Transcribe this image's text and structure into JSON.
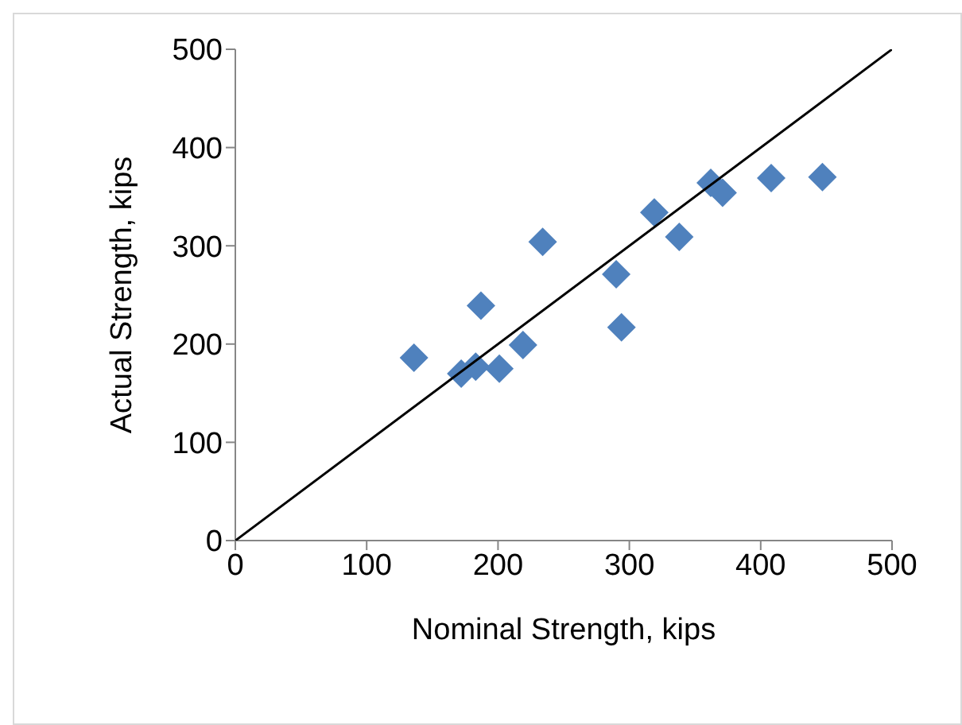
{
  "chart_data": {
    "type": "scatter",
    "xlabel": "Nominal Strength, kips",
    "ylabel": "Actual Strength, kips",
    "xlim": [
      0,
      500
    ],
    "ylim": [
      0,
      500
    ],
    "xticks": [
      0,
      100,
      200,
      300,
      400,
      500
    ],
    "yticks": [
      0,
      100,
      200,
      300,
      400,
      500
    ],
    "grid": false,
    "legend": false,
    "marker": "diamond",
    "series": [
      {
        "color": "#4f81bd",
        "x": [
          136,
          172,
          183,
          187,
          201,
          219,
          234,
          290,
          294,
          319,
          338,
          362,
          371,
          408,
          447
        ],
        "values": [
          186,
          170,
          177,
          239,
          175,
          199,
          304,
          271,
          217,
          334,
          309,
          364,
          354,
          369,
          370
        ]
      },
      {
        "type": "line",
        "color": "#000000",
        "marker": "none",
        "x": [
          0,
          500
        ],
        "values": [
          0,
          500
        ]
      }
    ]
  }
}
